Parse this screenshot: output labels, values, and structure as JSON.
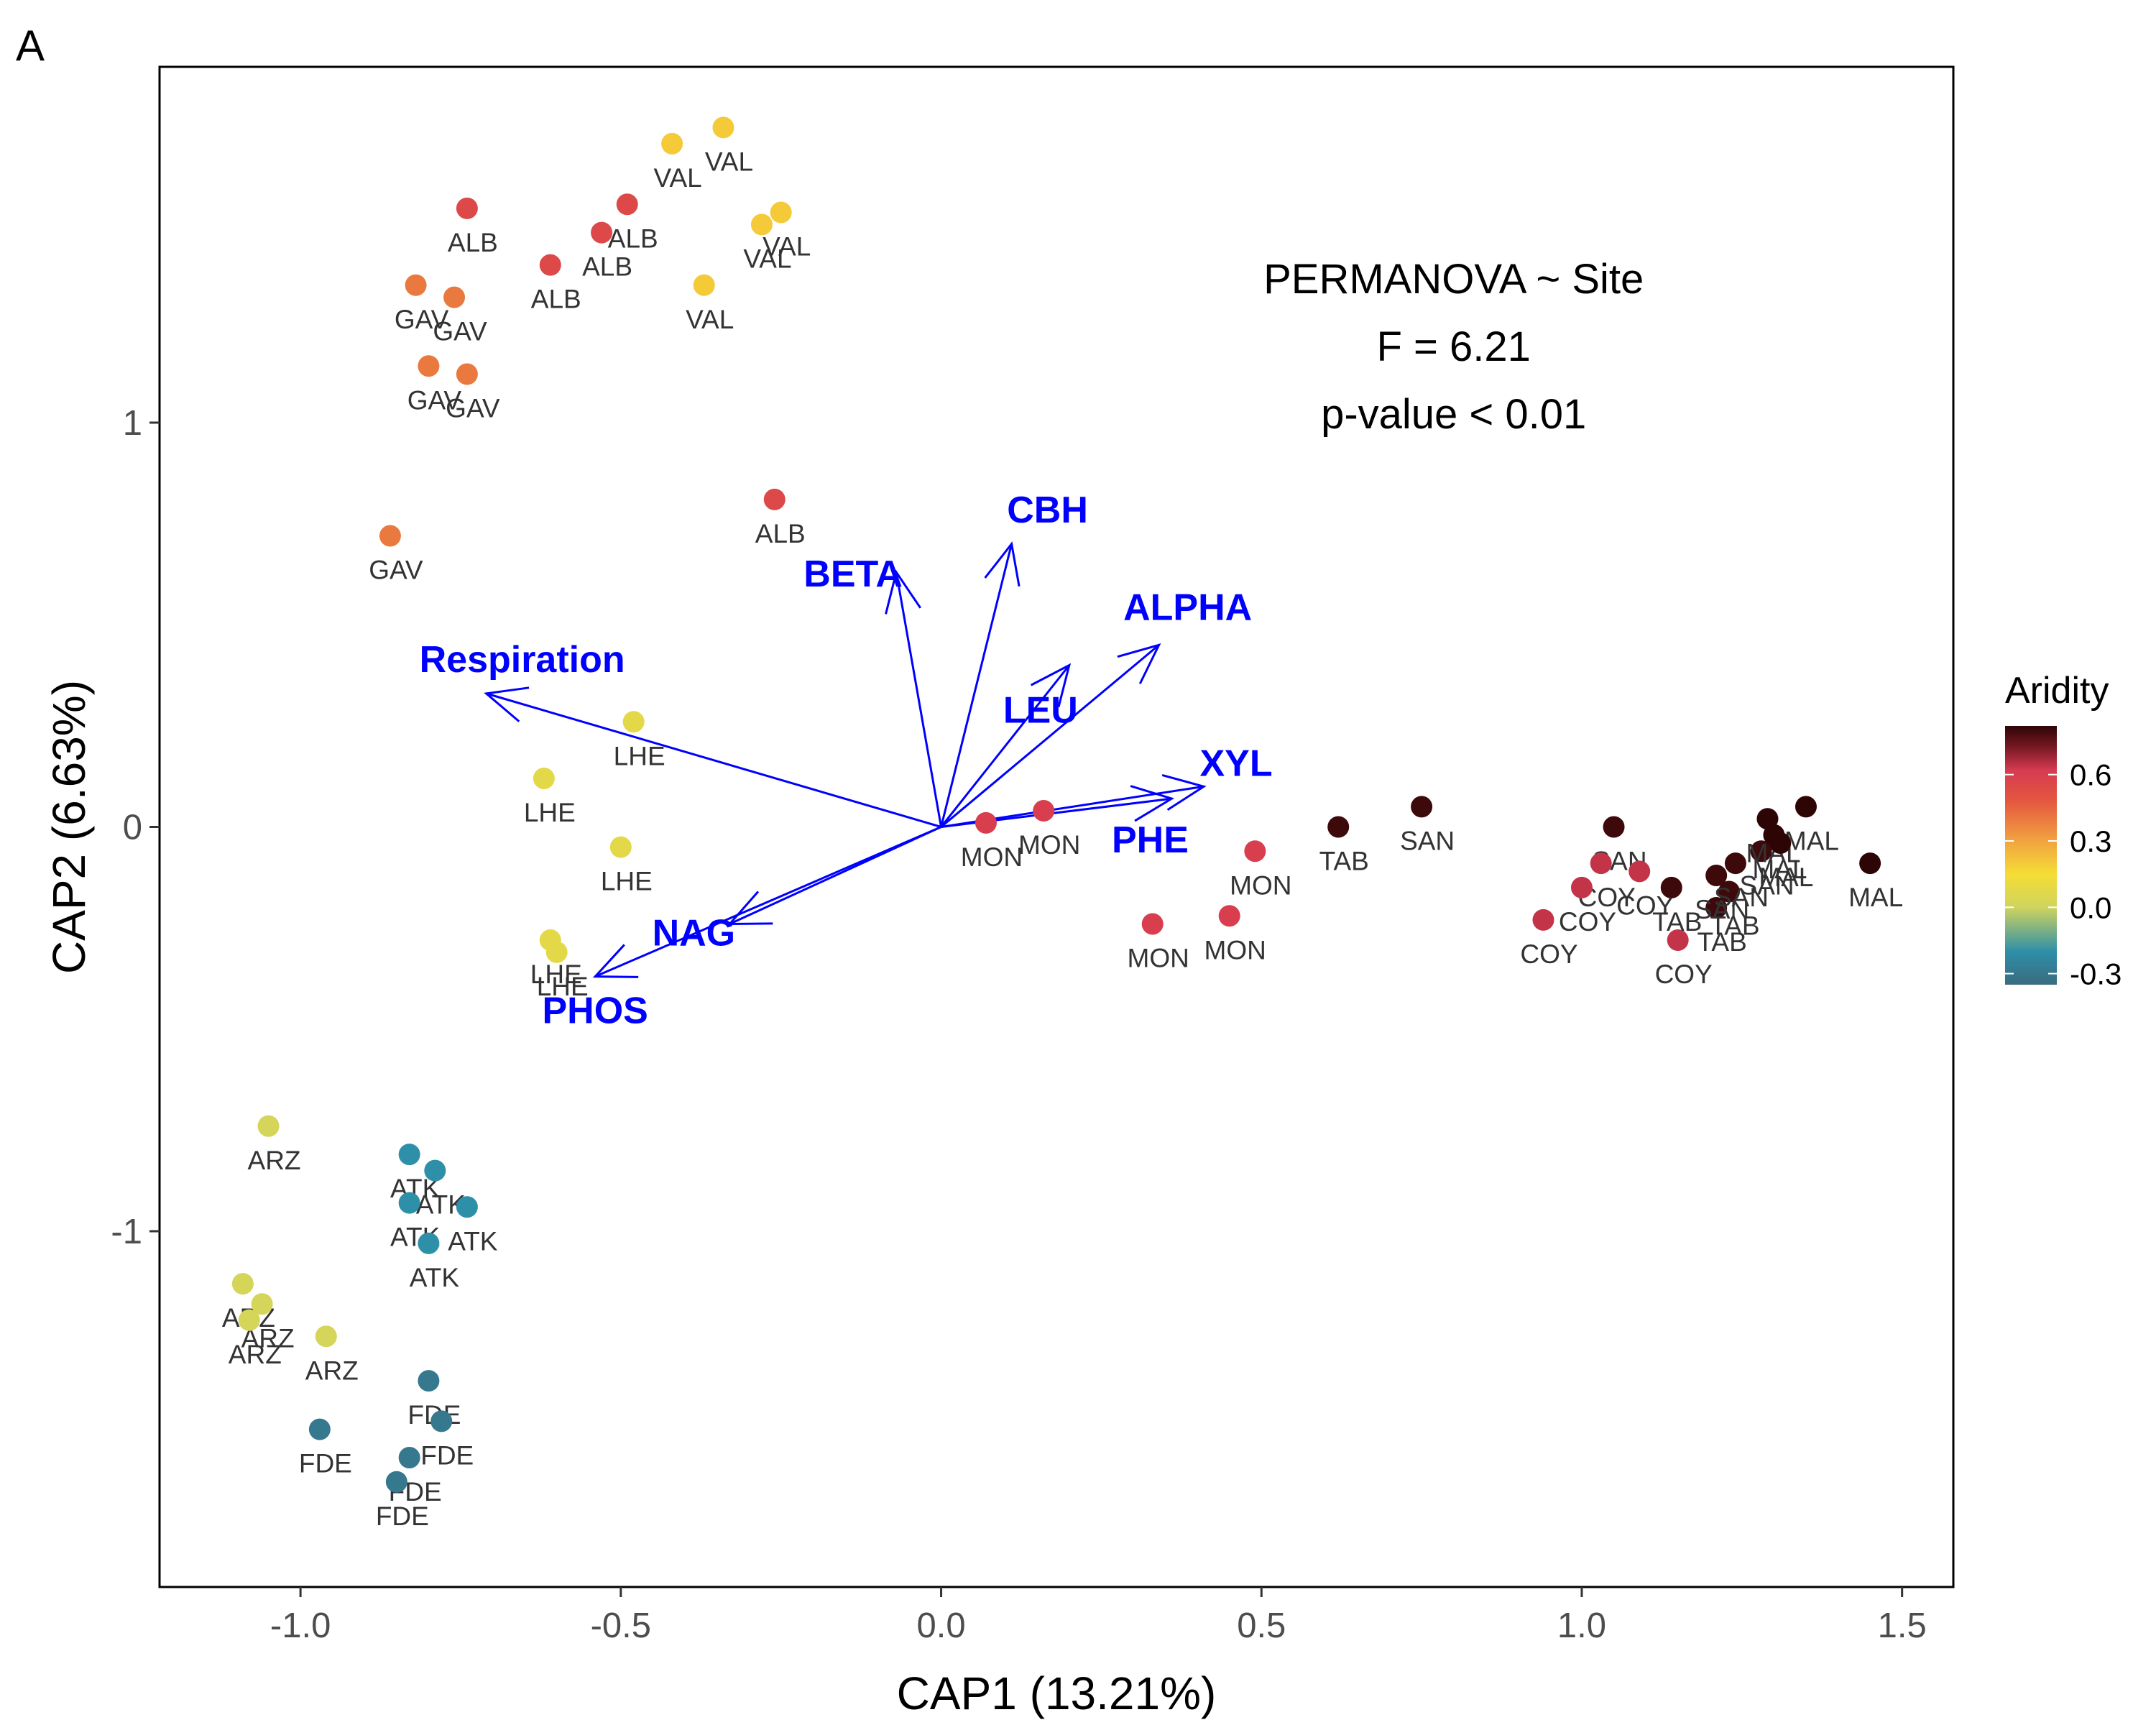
{
  "panel_label": "A",
  "chart_data": {
    "type": "scatter",
    "xlabel": "CAP1 (13.21%)",
    "ylabel": "CAP2 (6.63%)",
    "xlim": [
      -1.22,
      1.58
    ],
    "ylim": [
      -1.88,
      1.88
    ],
    "xticks": [
      -1.0,
      -0.5,
      0.0,
      0.5,
      1.0,
      1.5
    ],
    "xtick_labels": [
      "-1.0",
      "-0.5",
      "0.0",
      "0.5",
      "1.0",
      "1.5"
    ],
    "yticks": [
      -1,
      0,
      1
    ],
    "ytick_labels": [
      "-1",
      "0",
      "1"
    ],
    "grid": false,
    "color_scale": {
      "title": "Aridity",
      "domain": [
        -0.35,
        0.82
      ],
      "ticks": [
        0.6,
        0.3,
        0.0,
        -0.3
      ],
      "tick_labels": [
        "0.6",
        "0.3",
        "0.0",
        "-0.3"
      ],
      "stops": [
        {
          "v": -0.35,
          "color": "#3a6c80"
        },
        {
          "v": -0.2,
          "color": "#2e8fa8"
        },
        {
          "v": 0.0,
          "color": "#cfd45e"
        },
        {
          "v": 0.15,
          "color": "#f5dd35"
        },
        {
          "v": 0.3,
          "color": "#f1a340"
        },
        {
          "v": 0.48,
          "color": "#e4573f"
        },
        {
          "v": 0.62,
          "color": "#d63a51"
        },
        {
          "v": 0.72,
          "color": "#7a1a24"
        },
        {
          "v": 0.82,
          "color": "#2e0505"
        }
      ]
    },
    "points": [
      {
        "site": "VAL",
        "x": -0.42,
        "y": 1.69,
        "aridity": 0.2,
        "label": "VAL"
      },
      {
        "site": "VAL",
        "x": -0.34,
        "y": 1.73,
        "aridity": 0.2,
        "label": "VAL"
      },
      {
        "site": "VAL",
        "x": -0.28,
        "y": 1.49,
        "aridity": 0.2,
        "label": "VAL"
      },
      {
        "site": "VAL",
        "x": -0.25,
        "y": 1.52,
        "aridity": 0.2,
        "label": "VAL"
      },
      {
        "site": "VAL",
        "x": -0.37,
        "y": 1.34,
        "aridity": 0.2,
        "label": "VAL"
      },
      {
        "site": "ALB",
        "x": -0.74,
        "y": 1.53,
        "aridity": 0.55,
        "label": "ALB"
      },
      {
        "site": "ALB",
        "x": -0.49,
        "y": 1.54,
        "aridity": 0.55,
        "label": "ALB"
      },
      {
        "site": "ALB",
        "x": -0.53,
        "y": 1.47,
        "aridity": 0.55,
        "label": "ALB"
      },
      {
        "site": "ALB",
        "x": -0.61,
        "y": 1.39,
        "aridity": 0.55,
        "label": "ALB"
      },
      {
        "site": "ALB",
        "x": -0.26,
        "y": 0.81,
        "aridity": 0.55,
        "label": "ALB"
      },
      {
        "site": "GAV",
        "x": -0.82,
        "y": 1.34,
        "aridity": 0.4,
        "label": "GAV"
      },
      {
        "site": "GAV",
        "x": -0.76,
        "y": 1.31,
        "aridity": 0.4,
        "label": "GAV"
      },
      {
        "site": "GAV",
        "x": -0.8,
        "y": 1.14,
        "aridity": 0.4,
        "label": "GAV"
      },
      {
        "site": "GAV",
        "x": -0.74,
        "y": 1.12,
        "aridity": 0.4,
        "label": "GAV"
      },
      {
        "site": "GAV",
        "x": -0.86,
        "y": 0.72,
        "aridity": 0.4,
        "label": "GAV"
      },
      {
        "site": "LHE",
        "x": -0.48,
        "y": 0.26,
        "aridity": 0.08,
        "label": "LHE"
      },
      {
        "site": "LHE",
        "x": -0.62,
        "y": 0.12,
        "aridity": 0.08,
        "label": "LHE"
      },
      {
        "site": "LHE",
        "x": -0.5,
        "y": -0.05,
        "aridity": 0.08,
        "label": "LHE"
      },
      {
        "site": "LHE",
        "x": -0.61,
        "y": -0.28,
        "aridity": 0.08,
        "label": "LHE"
      },
      {
        "site": "LHE",
        "x": -0.6,
        "y": -0.31,
        "aridity": 0.08,
        "label": "LHE"
      },
      {
        "site": "MON",
        "x": 0.07,
        "y": 0.01,
        "aridity": 0.6,
        "label": "MON"
      },
      {
        "site": "MON",
        "x": 0.16,
        "y": 0.04,
        "aridity": 0.6,
        "label": "MON"
      },
      {
        "site": "MON",
        "x": 0.49,
        "y": -0.06,
        "aridity": 0.6,
        "label": "MON"
      },
      {
        "site": "MON",
        "x": 0.33,
        "y": -0.24,
        "aridity": 0.6,
        "label": "MON"
      },
      {
        "site": "MON",
        "x": 0.45,
        "y": -0.22,
        "aridity": 0.6,
        "label": "MON"
      },
      {
        "site": "TAB",
        "x": 0.62,
        "y": 0.0,
        "aridity": 0.8,
        "label": "TAB"
      },
      {
        "site": "SAN",
        "x": 0.75,
        "y": 0.05,
        "aridity": 0.8,
        "label": "SAN"
      },
      {
        "site": "SAN",
        "x": 1.05,
        "y": 0.0,
        "aridity": 0.8,
        "label": "SAN"
      },
      {
        "site": "COY",
        "x": 1.03,
        "y": -0.09,
        "aridity": 0.64,
        "label": "COY"
      },
      {
        "site": "COY",
        "x": 1.0,
        "y": -0.15,
        "aridity": 0.64,
        "label": "COY"
      },
      {
        "site": "COY",
        "x": 1.09,
        "y": -0.11,
        "aridity": 0.64,
        "label": "COY"
      },
      {
        "site": "COY",
        "x": 0.94,
        "y": -0.23,
        "aridity": 0.64,
        "label": "COY"
      },
      {
        "site": "COY",
        "x": 1.15,
        "y": -0.28,
        "aridity": 0.64,
        "label": "COY"
      },
      {
        "site": "TAB",
        "x": 1.14,
        "y": -0.15,
        "aridity": 0.8,
        "label": "TAB"
      },
      {
        "site": "TAB",
        "x": 1.21,
        "y": -0.2,
        "aridity": 0.8,
        "label": "TAB"
      },
      {
        "site": "TAB",
        "x": 1.23,
        "y": -0.16,
        "aridity": 0.8,
        "label": "TAB"
      },
      {
        "site": "SAN",
        "x": 1.21,
        "y": -0.12,
        "aridity": 0.8,
        "label": "SAN"
      },
      {
        "site": "SAN",
        "x": 1.24,
        "y": -0.09,
        "aridity": 0.8,
        "label": "SAN"
      },
      {
        "site": "SAN",
        "x": 1.28,
        "y": -0.06,
        "aridity": 0.8,
        "label": "SAN"
      },
      {
        "site": "MAL",
        "x": 1.29,
        "y": 0.02,
        "aridity": 0.82,
        "label": "MAL"
      },
      {
        "site": "MAL",
        "x": 1.35,
        "y": 0.05,
        "aridity": 0.82,
        "label": "MAL"
      },
      {
        "site": "MAL",
        "x": 1.3,
        "y": -0.02,
        "aridity": 0.82,
        "label": "MAL"
      },
      {
        "site": "MAL",
        "x": 1.31,
        "y": -0.04,
        "aridity": 0.82,
        "label": "MAL"
      },
      {
        "site": "MAL",
        "x": 1.45,
        "y": -0.09,
        "aridity": 0.82,
        "label": "MAL"
      },
      {
        "site": "ARZ",
        "x": -1.05,
        "y": -0.74,
        "aridity": 0.02,
        "label": "ARZ"
      },
      {
        "site": "ARZ",
        "x": -1.09,
        "y": -1.13,
        "aridity": 0.02,
        "label": "ARZ"
      },
      {
        "site": "ARZ",
        "x": -1.06,
        "y": -1.18,
        "aridity": 0.02,
        "label": "ARZ"
      },
      {
        "site": "ARZ",
        "x": -1.08,
        "y": -1.22,
        "aridity": 0.02,
        "label": "ARZ"
      },
      {
        "site": "ARZ",
        "x": -0.96,
        "y": -1.26,
        "aridity": 0.02,
        "label": "ARZ"
      },
      {
        "site": "ATK",
        "x": -0.83,
        "y": -0.81,
        "aridity": -0.2,
        "label": "ATK"
      },
      {
        "site": "ATK",
        "x": -0.79,
        "y": -0.85,
        "aridity": -0.2,
        "label": "ATK"
      },
      {
        "site": "ATK",
        "x": -0.83,
        "y": -0.93,
        "aridity": -0.2,
        "label": "ATK"
      },
      {
        "site": "ATK",
        "x": -0.74,
        "y": -0.94,
        "aridity": -0.2,
        "label": "ATK"
      },
      {
        "site": "ATK",
        "x": -0.8,
        "y": -1.03,
        "aridity": -0.2,
        "label": "ATK"
      },
      {
        "site": "FDE",
        "x": -0.8,
        "y": -1.37,
        "aridity": -0.3,
        "label": "FDE"
      },
      {
        "site": "FDE",
        "x": -0.78,
        "y": -1.47,
        "aridity": -0.3,
        "label": "FDE"
      },
      {
        "site": "FDE",
        "x": -0.97,
        "y": -1.49,
        "aridity": -0.3,
        "label": "FDE"
      },
      {
        "site": "FDE",
        "x": -0.83,
        "y": -1.56,
        "aridity": -0.3,
        "label": "FDE"
      },
      {
        "site": "FDE",
        "x": -0.85,
        "y": -1.62,
        "aridity": -0.3,
        "label": "FDE"
      }
    ],
    "vectors": [
      {
        "name": "CBH",
        "x": 0.11,
        "y": 0.7
      },
      {
        "name": "BETA",
        "x": -0.07,
        "y": 0.63
      },
      {
        "name": "ALPHA",
        "x": 0.34,
        "y": 0.45
      },
      {
        "name": "LEU",
        "x": 0.2,
        "y": 0.4
      },
      {
        "name": "XYL",
        "x": 0.41,
        "y": 0.1
      },
      {
        "name": "PHE",
        "x": 0.36,
        "y": 0.07
      },
      {
        "name": "Respiration",
        "x": -0.71,
        "y": 0.33
      },
      {
        "name": "NAG",
        "x": -0.33,
        "y": -0.24
      },
      {
        "name": "PHOS",
        "x": -0.54,
        "y": -0.37
      }
    ],
    "annotation": [
      "PERMANOVA ~ Site",
      "F = 6.21",
      "p-value < 0.01"
    ]
  }
}
